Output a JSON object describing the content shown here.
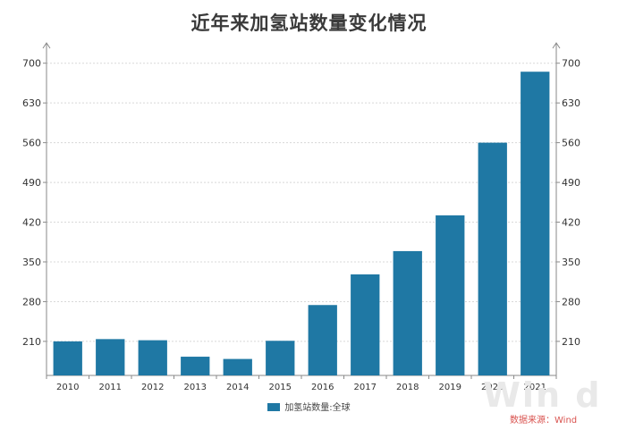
{
  "title": "近年来加氢站数量变化情况",
  "legend": {
    "label": "加氢站数量:全球"
  },
  "source": "数据来源：Wind",
  "watermark": "Win d",
  "colors": {
    "bar": "#1f78a4",
    "grid": "#d8d8d8",
    "axis": "#8a8a8a",
    "source": "#d9534f",
    "title": "#3a3a3a"
  },
  "chart_data": {
    "type": "bar",
    "title": "近年来加氢站数量变化情况",
    "categories": [
      "2010",
      "2011",
      "2012",
      "2013",
      "2014",
      "2015",
      "2016",
      "2017",
      "2018",
      "2019",
      "2020",
      "2021"
    ],
    "series": [
      {
        "name": "加氢站数量:全球",
        "values": [
          210,
          214,
          212,
          183,
          179,
          211,
          274,
          328,
          369,
          432,
          560,
          685
        ]
      }
    ],
    "xlabel": "",
    "ylabel": "",
    "ylim": [
      150,
      720
    ],
    "yticks": [
      210,
      280,
      350,
      420,
      490,
      560,
      630,
      700
    ],
    "grid": true,
    "legend_position": "bottom-center",
    "dual_axis_labels": true
  }
}
